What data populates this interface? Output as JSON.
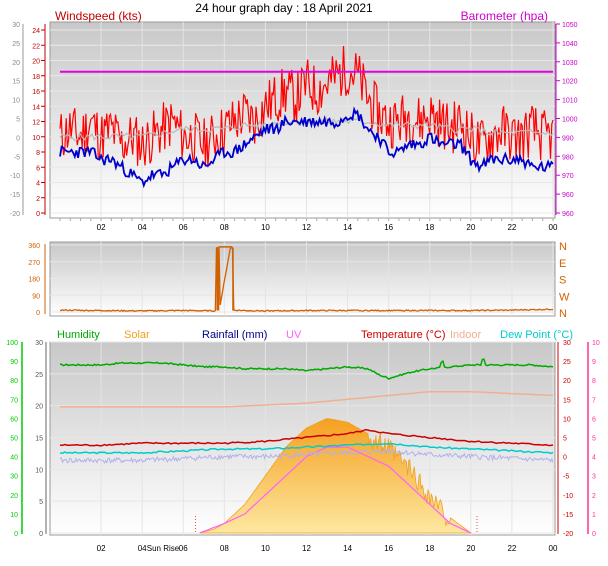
{
  "page_title": "24 hour graph day : 18 April 2021",
  "colors": {
    "wind_axis": "#c00000",
    "baro": "#e000e0",
    "wind_avg": "#0000cc",
    "wind_gust": "#ff0000",
    "baro_axis": "#cc00cc",
    "humidity": "#00aa00",
    "solar": "#f0a020",
    "temperature": "#cc0000",
    "dewpoint": "#00cccc",
    "indoor": "#f0b090",
    "uv": "#ff60ff",
    "rainfall": "#000088",
    "direction": "#d06000",
    "grey_line": "#b8b8b8",
    "humidity_axis": "#00cc00",
    "uv_axis": "#ff3399"
  },
  "chart_data": [
    {
      "type": "line",
      "panel": "wind-barometer",
      "legend_left": "Windspeed (kts)",
      "legend_right": "Barometer (hpa)",
      "x_ticks": [
        "02",
        "04",
        "06",
        "08",
        "10",
        "12",
        "14",
        "16",
        "18",
        "20",
        "22",
        "00"
      ],
      "y_left_ticks_red": [
        "0",
        "2",
        "4",
        "6",
        "8",
        "10",
        "12",
        "14",
        "16",
        "18",
        "20",
        "22",
        "24"
      ],
      "y_left_ticks_grey": [
        "-20",
        "-15",
        "-10",
        "-5",
        "0",
        "5",
        "10",
        "15",
        "20",
        "25",
        "30"
      ],
      "y_right_ticks": [
        "960",
        "960",
        "970",
        "980",
        "990",
        "1000",
        "1010",
        "1020",
        "1030",
        "1040",
        "1050"
      ],
      "ylim_wind": [
        0,
        24
      ],
      "ylim_baro": [
        960,
        1050
      ],
      "xlim_hours": [
        0,
        24
      ],
      "series": [
        {
          "name": "",
          "color": "#ff0000",
          "x": [
            0,
            0.5,
            1,
            1.5,
            2,
            2.5,
            3,
            3.5,
            4,
            4.5,
            5,
            5.5,
            6,
            6.5,
            7,
            7.5,
            8,
            8.5,
            9,
            9.5,
            10,
            10.5,
            11,
            11.5,
            12,
            12.5,
            13,
            13.5,
            14,
            14.5,
            15,
            15.5,
            16,
            16.5,
            17,
            17.5,
            18,
            18.5,
            19,
            19.5,
            20,
            20.5,
            21,
            21.5,
            22,
            22.5,
            23,
            23.5
          ],
          "values": [
            10,
            11,
            10,
            12,
            10,
            11,
            9,
            10,
            9,
            10,
            11,
            12,
            10,
            10,
            9,
            10,
            11,
            12,
            13,
            12,
            14,
            15,
            16,
            15,
            17,
            16,
            17,
            18,
            19,
            18,
            15,
            13,
            12,
            12,
            13,
            12,
            13,
            12,
            11,
            12,
            10,
            9,
            10,
            11,
            10,
            10,
            11,
            10
          ]
        },
        {
          "name": "",
          "color": "#0000cc",
          "x": [
            0,
            0.5,
            1,
            1.5,
            2,
            2.5,
            3,
            3.5,
            4,
            4.5,
            5,
            5.5,
            6,
            6.5,
            7,
            7.5,
            8,
            8.5,
            9,
            9.5,
            10,
            10.5,
            11,
            11.5,
            12,
            12.5,
            13,
            13.5,
            14,
            14.5,
            15,
            15.5,
            16,
            16.5,
            17,
            17.5,
            18,
            18.5,
            19,
            19.5,
            20,
            20.5,
            21,
            21.5,
            22,
            22.5,
            23,
            23.5
          ],
          "values": [
            8,
            8,
            8,
            8,
            7,
            7,
            6,
            5,
            4,
            5,
            5,
            6,
            7,
            7,
            6,
            7,
            8,
            8,
            9,
            10,
            11,
            11,
            12,
            12,
            12,
            12,
            12,
            12,
            13,
            13,
            11,
            10,
            8,
            8,
            9,
            9,
            10,
            9,
            9,
            9,
            7,
            6,
            7,
            7,
            7,
            7,
            6,
            6
          ]
        },
        {
          "name": "",
          "color": "#b8b8b8",
          "x": [
            0,
            1,
            2,
            3,
            4,
            5,
            6,
            7,
            8,
            9,
            10,
            11,
            12,
            13,
            14,
            15,
            16,
            17,
            18,
            19,
            20,
            21,
            22,
            23,
            24
          ],
          "values": [
            10,
            10,
            10,
            10,
            10,
            10.5,
            11,
            11,
            11,
            11.5,
            11.5,
            12,
            12,
            12,
            12,
            12,
            11.5,
            11.5,
            11.5,
            11,
            11,
            10.5,
            10.5,
            10.5,
            10.5
          ]
        },
        {
          "name": "",
          "color": "#e000e0",
          "axis": "right",
          "x": [
            0,
            6,
            12,
            18,
            24
          ],
          "values": [
            1026,
            1026,
            1026,
            1026,
            1026
          ]
        }
      ]
    },
    {
      "type": "line",
      "panel": "wind-direction",
      "y_ticks": [
        "0",
        "90",
        "180",
        "270",
        "360"
      ],
      "y_right_letters": [
        "N",
        "W",
        "S",
        "E",
        "N"
      ],
      "ylim": [
        0,
        360
      ],
      "x": [
        0,
        2,
        4,
        6,
        7.6,
        7.7,
        7.75,
        8.3,
        8.35,
        8.45,
        9,
        10,
        12,
        14,
        16,
        18,
        20,
        22,
        24
      ],
      "values": [
        10,
        8,
        6,
        8,
        6,
        345,
        10,
        350,
        345,
        10,
        8,
        6,
        8,
        8,
        8,
        8,
        8,
        10,
        15
      ]
    },
    {
      "type": "area",
      "panel": "humidity-temperature-solar",
      "legend": [
        "Humidity",
        "Solar",
        "Rainfall (mm)",
        "UV",
        "Temperature (°C)",
        "Indoor",
        "Dew Point (°C)"
      ],
      "x_ticks": [
        "02",
        "04",
        "Sun Rise",
        "06",
        "08",
        "10",
        "12",
        "14",
        "16",
        "18",
        "20",
        "22",
        "00"
      ],
      "y_left_humidity_ticks": [
        "0",
        "10",
        "20",
        "30",
        "40",
        "50",
        "60",
        "70",
        "80",
        "90",
        "100"
      ],
      "y_left_grey_ticks": [
        "0",
        "5",
        "10",
        "15",
        "20",
        "25",
        "30"
      ],
      "y_right_temp_ticks": [
        "-20",
        "-15",
        "-10",
        "-5",
        "0",
        "5",
        "10",
        "15",
        "20",
        "25",
        "30"
      ],
      "y_right_uv_ticks": [
        "0",
        "1",
        "2",
        "3",
        "4",
        "5",
        "6",
        "7",
        "8",
        "9",
        "10"
      ],
      "series": [
        {
          "name": "Humidity",
          "color": "#00aa00",
          "x": [
            0,
            2,
            3,
            4,
            5,
            6,
            7,
            8,
            9,
            10,
            11,
            12,
            13,
            14,
            15,
            15.5,
            16,
            17,
            18,
            19,
            20,
            21,
            22,
            23,
            24
          ],
          "values": [
            88,
            88,
            89,
            89,
            89,
            88,
            87,
            87,
            86,
            86,
            86,
            85,
            86,
            87,
            86,
            83,
            81,
            84,
            86,
            87,
            88,
            88,
            88,
            88,
            87
          ]
        },
        {
          "name": "Temperature (°C)",
          "color": "#cc0000",
          "x": [
            0,
            2,
            4,
            6,
            8,
            10,
            12,
            14,
            15,
            16,
            17,
            18,
            20,
            22,
            24
          ],
          "values": [
            3,
            3,
            3.5,
            3.5,
            3.5,
            4,
            5,
            6,
            7,
            6,
            5.5,
            5,
            4,
            3.5,
            3
          ]
        },
        {
          "name": "Dew Point (°C)",
          "color": "#00cccc",
          "x": [
            0,
            2,
            4,
            6,
            8,
            10,
            12,
            14,
            16,
            18,
            20,
            22,
            24
          ],
          "values": [
            1,
            1,
            1,
            1.5,
            2,
            2,
            2.5,
            3,
            3.5,
            2.5,
            2,
            1.5,
            1
          ]
        },
        {
          "name": "Indoor",
          "color": "#f0b090",
          "x": [
            0,
            2,
            4,
            6,
            8,
            10,
            12,
            14,
            16,
            18,
            20,
            22,
            24
          ],
          "values": [
            13,
            13,
            13,
            13,
            13,
            13.5,
            14,
            15,
            16,
            17,
            17,
            16.5,
            16
          ]
        },
        {
          "name": "Solar",
          "color": "#f0a020",
          "x": [
            6.8,
            7.5,
            8,
            9,
            10,
            11,
            12,
            13,
            14,
            15,
            16,
            17,
            18,
            19,
            20
          ],
          "values": [
            0,
            2,
            5,
            15,
            30,
            45,
            55,
            60,
            58,
            52,
            45,
            35,
            20,
            8,
            0
          ]
        },
        {
          "name": "UV",
          "color": "#ff60ff",
          "x": [
            6.8,
            8,
            9,
            10,
            11,
            12,
            13,
            14,
            15,
            16,
            17,
            18,
            19,
            20
          ],
          "values": [
            0,
            0.5,
            1,
            2,
            3,
            4,
            4.5,
            4.5,
            4,
            3.5,
            2.5,
            1.5,
            0.5,
            0
          ]
        }
      ]
    }
  ]
}
